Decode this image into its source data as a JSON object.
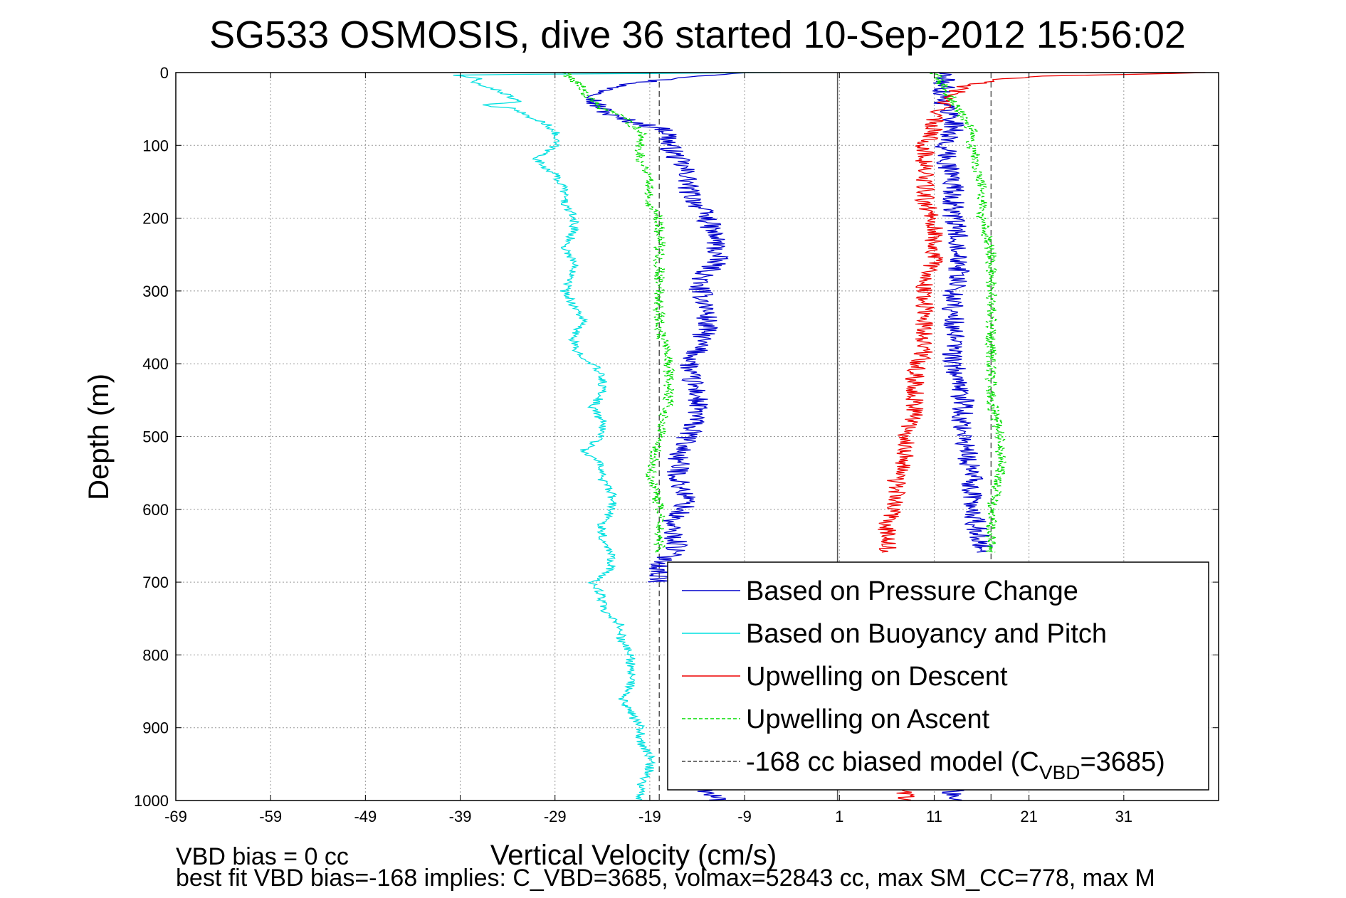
{
  "chart_data": {
    "type": "line",
    "title": "SG533 OSMOSIS, dive 36 started 10-Sep-2012 15:56:02",
    "xlabel": "Vertical Velocity (cm/s)",
    "ylabel": "Depth (m)",
    "xlim": [
      -69,
      41
    ],
    "ylim": [
      0,
      1000
    ],
    "y_reversed": true,
    "grid": true,
    "x_ticks": [
      -69,
      -59,
      -49,
      -39,
      -29,
      -19,
      -9,
      1,
      11,
      21,
      31
    ],
    "x_tick_labels": [
      "-69",
      "-59",
      "-49",
      "-39",
      "-29",
      "-19",
      "-9",
      "1",
      "11",
      "21",
      "31"
    ],
    "y_ticks": [
      0,
      100,
      200,
      300,
      400,
      500,
      600,
      700,
      800,
      900,
      1000
    ],
    "y_tick_labels": [
      "0",
      "100",
      "200",
      "300",
      "400",
      "500",
      "600",
      "700",
      "800",
      "900",
      "1000"
    ],
    "vertical_lines": [
      {
        "x": -18,
        "style": "dashed",
        "color": "#555555",
        "series": "model"
      },
      {
        "x": 17,
        "style": "dashed",
        "color": "#555555",
        "series": "model"
      },
      {
        "x": 0.8,
        "style": "solid",
        "color": "#555555",
        "series": "zero"
      }
    ],
    "legend_position": "lower-right",
    "series": [
      {
        "name": "Based on Pressure Change",
        "color": "#0000cc",
        "style": "solid",
        "segments": [
          {
            "depth": [
              0,
              10,
              20,
              30,
              40,
              50,
              60,
              70,
              80,
              90,
              100,
              120,
              140,
              160,
              180,
              200,
              230,
              260,
              290,
              320,
              350,
              380,
              410,
              440,
              470,
              500,
              530,
              560,
              590,
              620,
              650,
              680,
              700
            ],
            "values": [
              -8,
              -18,
              -23,
              -24,
              -25,
              -24,
              -23,
              -20,
              -17,
              -17,
              -17,
              -16,
              -15,
              -15,
              -14,
              -13,
              -12,
              -12,
              -14,
              -13,
              -13,
              -14,
              -15,
              -14,
              -14,
              -15,
              -16,
              -16,
              -15,
              -17,
              -16,
              -18,
              -18
            ]
          },
          {
            "depth": [
              985,
              1000
            ],
            "values": [
              -13,
              -12
            ]
          },
          {
            "depth": [
              0,
              20,
              40,
              60,
              80,
              100,
              150,
              200,
              250,
              300,
              350,
              400,
              450,
              500,
              550,
              600,
              650,
              660
            ],
            "values": [
              12,
              12,
              12,
              13,
              13,
              12,
              13,
              13,
              14,
              13,
              13,
              13,
              14,
              14,
              15,
              15,
              16,
              16
            ]
          },
          {
            "depth": [
              985,
              1000
            ],
            "values": [
              13,
              13
            ]
          }
        ]
      },
      {
        "name": "Based on Buoyancy and Pitch",
        "color": "#00e0e0",
        "style": "solid",
        "segments": [
          {
            "depth": [
              0,
              3,
              8,
              12,
              20,
              30,
              40,
              45,
              50,
              60,
              70,
              80,
              90,
              100,
              110,
              120,
              140,
              160,
              180,
              200,
              220,
              240,
              260,
              280,
              300,
              320,
              340,
              360,
              380,
              400,
              420,
              440,
              460,
              480,
              500,
              520,
              540,
              560,
              580,
              600,
              620,
              640,
              660,
              680,
              700,
              720,
              740,
              760,
              780,
              800,
              820,
              840,
              860,
              880,
              900,
              920,
              940,
              960,
              980,
              1000
            ],
            "values": [
              -5,
              -40,
              -37,
              -38,
              -36,
              -34,
              -33,
              -37,
              -33,
              -32,
              -30,
              -29,
              -29,
              -29,
              -30,
              -31,
              -29,
              -28,
              -28,
              -27,
              -27,
              -28,
              -27,
              -27,
              -28,
              -27,
              -26,
              -27,
              -27,
              -25,
              -24,
              -24,
              -25,
              -24,
              -24,
              -26,
              -24,
              -24,
              -23,
              -23,
              -24,
              -24,
              -23,
              -23,
              -25,
              -24,
              -24,
              -22,
              -22,
              -21,
              -21,
              -21,
              -22,
              -21,
              -20,
              -20,
              -19,
              -19,
              -20,
              -20
            ]
          }
        ]
      },
      {
        "name": "Upwelling on Descent",
        "color": "#ee0000",
        "style": "solid",
        "segments": [
          {
            "depth": [
              0,
              5,
              10,
              20,
              30,
              40,
              50,
              60,
              70,
              80,
              100,
              120,
              150,
              180,
              200,
              230,
              260,
              290,
              320,
              350,
              380,
              410,
              440,
              470,
              500,
              530,
              560,
              590,
              620,
              650,
              660
            ],
            "values": [
              40,
              22,
              17,
              14,
              13,
              12,
              12,
              11,
              11,
              11,
              10,
              10,
              10,
              10,
              11,
              11,
              11,
              10,
              10,
              10,
              10,
              9,
              9,
              9,
              8,
              8,
              7,
              7,
              6,
              6,
              6
            ]
          },
          {
            "depth": [
              985,
              1000
            ],
            "values": [
              8,
              8
            ]
          }
        ]
      },
      {
        "name": "Upwelling on Ascent",
        "color": "#00dd00",
        "style": "dashed",
        "segments": [
          {
            "depth": [
              0,
              10,
              20,
              30,
              40,
              50,
              60,
              70,
              80,
              90,
              100,
              120,
              140,
              160,
              180,
              200,
              250,
              300,
              350,
              400,
              450,
              500,
              550,
              600,
              650,
              660
            ],
            "values": [
              -28,
              -27,
              -26,
              -26,
              -25,
              -24,
              -22,
              -21,
              -20,
              -20,
              -20,
              -20,
              -19,
              -19,
              -19,
              -18,
              -18,
              -18,
              -18,
              -17,
              -17,
              -18,
              -19,
              -18,
              -18,
              -18
            ]
          },
          {
            "depth": [
              0,
              20,
              40,
              60,
              80,
              100,
              150,
              200,
              250,
              300,
              350,
              400,
              450,
              500,
              550,
              600,
              650,
              660
            ],
            "values": [
              11,
              12,
              13,
              14,
              15,
              15,
              16,
              16,
              17,
              17,
              17,
              17,
              17,
              18,
              18,
              17,
              17,
              17
            ]
          }
        ]
      },
      {
        "name": "-168 cc biased model (C_VBD=3685)",
        "color": "#444444",
        "style": "dashed",
        "segments": []
      }
    ],
    "legend_entries": [
      {
        "label": "Based on Pressure Change",
        "color": "#0000cc",
        "style": "solid"
      },
      {
        "label": "Based on Buoyancy and Pitch",
        "color": "#00e0e0",
        "style": "solid"
      },
      {
        "label": "Upwelling on Descent",
        "color": "#ee0000",
        "style": "solid"
      },
      {
        "label": "Upwelling on Ascent",
        "color": "#00dd00",
        "style": "dashed"
      },
      {
        "label_main": "-168 cc biased model (C",
        "label_sub": "VBD",
        "label_end": "=3685)",
        "color": "#444444",
        "style": "dashed"
      }
    ],
    "footer_lines": [
      "VBD bias = 0 cc",
      "best fit VBD bias=-168 implies: C_VBD=3685, volmax=52843 cc, max SM_CC=778, max M"
    ]
  }
}
